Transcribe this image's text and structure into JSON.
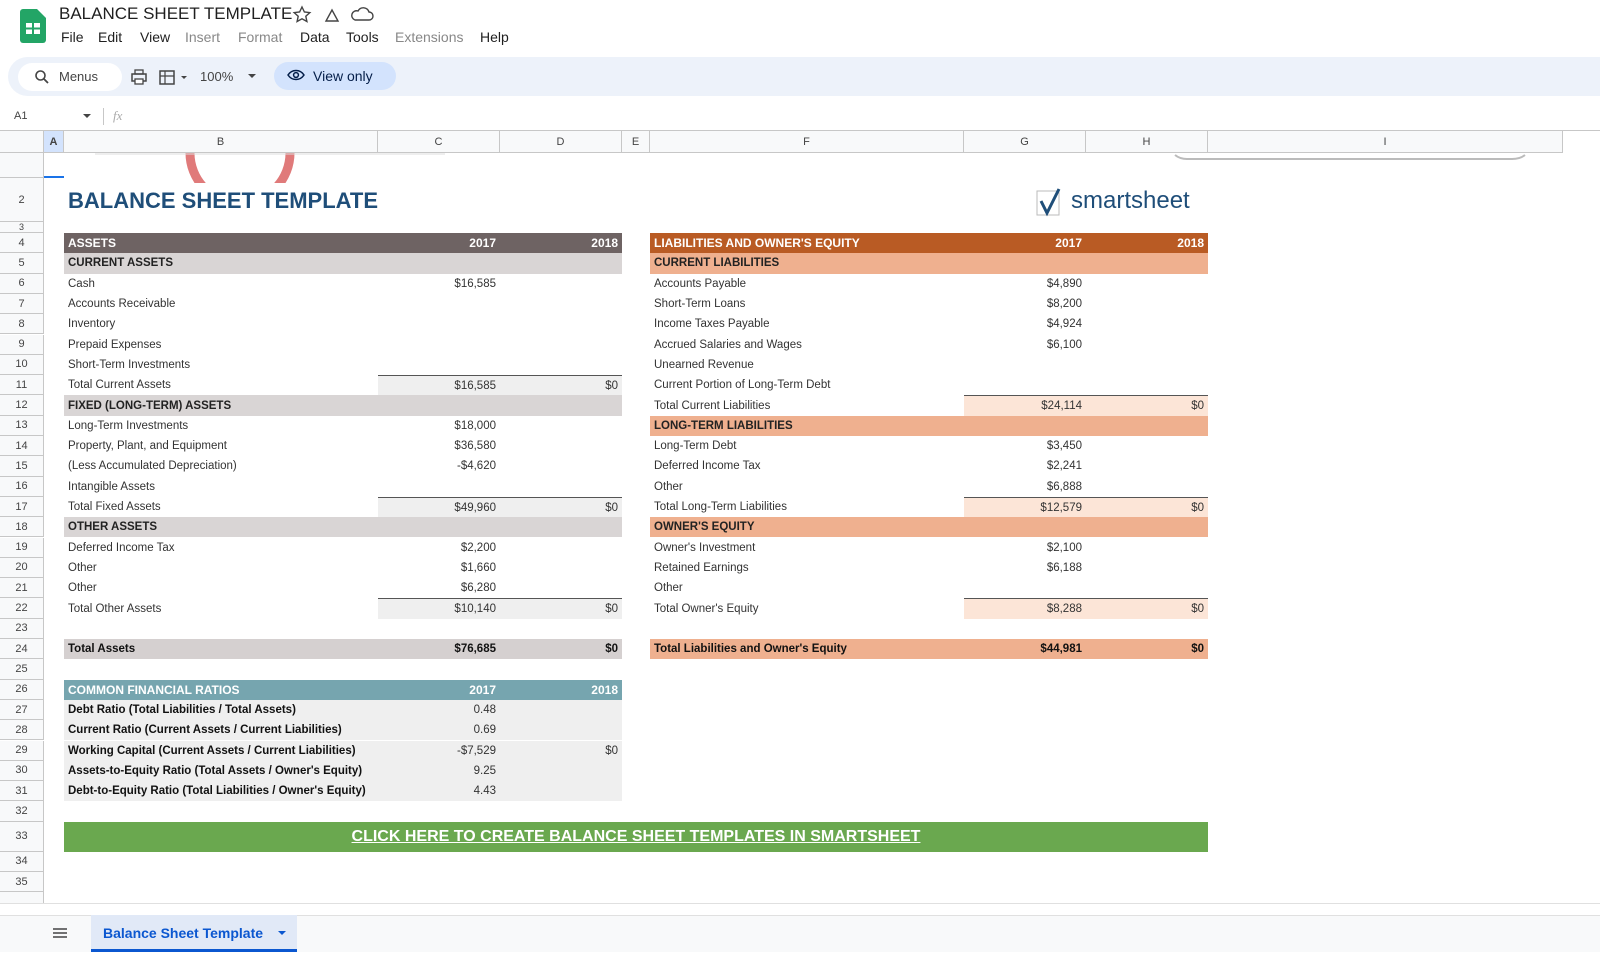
{
  "app": {
    "title": "BALANCE SHEET TEMPLATE",
    "menus": [
      "File",
      "Edit",
      "View",
      "Insert",
      "Format",
      "Data",
      "Tools",
      "Extensions",
      "Help"
    ],
    "search": "Menus",
    "zoom": "100%",
    "mode": "View only",
    "name_box": "A1",
    "formula_icon": "fx"
  },
  "columns": [
    "A",
    "B",
    "C",
    "D",
    "E",
    "F",
    "G",
    "H",
    "I"
  ],
  "row_numbers": [
    "2",
    "3",
    "4",
    "5",
    "6",
    "7",
    "8",
    "9",
    "10",
    "11",
    "12",
    "13",
    "14",
    "15",
    "16",
    "17",
    "18",
    "19",
    "20",
    "21",
    "22",
    "23",
    "24",
    "25",
    "26",
    "27",
    "28",
    "29",
    "30",
    "31",
    "32",
    "33",
    "34",
    "35"
  ],
  "sheet": {
    "title": "BALANCE SHEET TEMPLATE",
    "logo": "smartsheet",
    "assets": {
      "header": [
        "ASSETS",
        "2017",
        "2018"
      ],
      "sections": [
        {
          "title": "CURRENT ASSETS",
          "items": [
            [
              "Cash",
              "$16,585"
            ],
            [
              "Accounts Receivable"
            ],
            [
              "Inventory"
            ],
            [
              "Prepaid Expenses"
            ],
            [
              "Short-Term Investments"
            ]
          ],
          "total": [
            "Total Current Assets",
            "$16,585",
            "$0"
          ]
        },
        {
          "title": "FIXED (LONG-TERM) ASSETS",
          "items": [
            [
              "Long-Term Investments",
              "$18,000"
            ],
            [
              "Property, Plant, and Equipment",
              "$36,580"
            ],
            [
              "(Less Accumulated Depreciation)",
              "-$4,620"
            ],
            [
              "Intangible Assets"
            ]
          ],
          "total": [
            "Total Fixed Assets",
            "$49,960",
            "$0"
          ]
        },
        {
          "title": "OTHER ASSETS",
          "items": [
            [
              "Deferred Income Tax",
              "$2,200"
            ],
            [
              "Other",
              "$1,660"
            ],
            [
              "Other",
              "$6,280"
            ]
          ],
          "total": [
            "Total Other Assets",
            "$10,140",
            "$0"
          ]
        }
      ],
      "grand": [
        "Total Assets",
        "$76,685",
        "$0"
      ]
    },
    "liabilities": {
      "header": [
        "LIABILITIES AND OWNER'S EQUITY",
        "2017",
        "2018"
      ],
      "sections": [
        {
          "title": "CURRENT LIABILITIES",
          "items": [
            [
              "Accounts Payable",
              "$4,890"
            ],
            [
              "Short-Term Loans",
              "$8,200"
            ],
            [
              "Income Taxes Payable",
              "$4,924"
            ],
            [
              "Accrued Salaries and Wages",
              "$6,100"
            ],
            [
              "Unearned Revenue"
            ],
            [
              "Current Portion of Long-Term Debt"
            ]
          ],
          "total": [
            "Total Current Liabilities",
            "$24,114",
            "$0"
          ]
        },
        {
          "title": "LONG-TERM LIABILITIES",
          "items": [
            [
              "Long-Term Debt",
              "$3,450"
            ],
            [
              "Deferred Income Tax",
              "$2,241"
            ],
            [
              "Other",
              "$6,888"
            ]
          ],
          "total": [
            "Total Long-Term Liabilities",
            "$12,579",
            "$0"
          ]
        },
        {
          "title": "OWNER'S EQUITY",
          "items": [
            [
              "Owner's Investment",
              "$2,100"
            ],
            [
              "Retained Earnings",
              "$6,188"
            ],
            [
              "Other"
            ]
          ],
          "total": [
            "Total Owner's Equity",
            "$8,288",
            "$0"
          ]
        }
      ],
      "grand": [
        "Total Liabilities and Owner's Equity",
        "$44,981",
        "$0"
      ]
    },
    "ratios": {
      "header": [
        "COMMON FINANCIAL RATIOS",
        "2017",
        "2018"
      ],
      "rows": [
        [
          "Debt Ratio (Total Liabilities / Total Assets)",
          "0.48"
        ],
        [
          "Current Ratio (Current Assets / Current Liabilities)",
          "0.69"
        ],
        [
          "Working Capital (Current Assets / Current Liabilities)",
          "-$7,529",
          "$0"
        ],
        [
          "Assets-to-Equity Ratio (Total Assets / Owner's Equity)",
          "9.25"
        ],
        [
          "Debt-to-Equity Ratio (Total Liabilities / Owner's Equity)",
          "4.43"
        ]
      ]
    },
    "cta": "CLICK HERE TO CREATE BALANCE SHEET TEMPLATES IN SMARTSHEET"
  },
  "tab": "Balance Sheet Template"
}
